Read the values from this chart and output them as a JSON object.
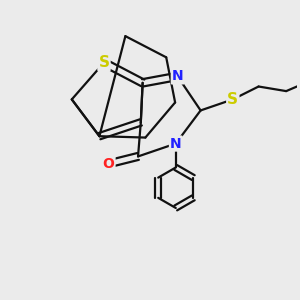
{
  "background_color": "#ebebeb",
  "atom_colors": {
    "S_thio": "#cccc00",
    "S_bu": "#cccc00",
    "N": "#2222ff",
    "O": "#ff2222",
    "C": "#000000"
  },
  "bond_color": "#111111",
  "bond_width": 1.6,
  "font_size_S": 11,
  "font_size_N": 10,
  "font_size_O": 10,
  "figsize": [
    3.0,
    3.0
  ],
  "dpi": 100,
  "xlim": [
    -1.0,
    2.2
  ],
  "ylim": [
    -1.3,
    1.8
  ]
}
